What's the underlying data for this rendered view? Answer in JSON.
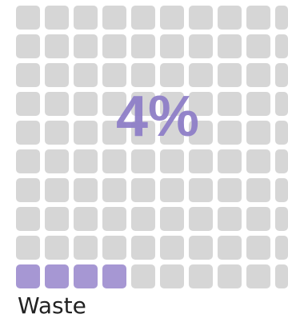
{
  "chart_data": {
    "type": "waffle",
    "percent": 4,
    "label": "Waste",
    "display_value": "4%",
    "filled_cells": 4,
    "rows": 10,
    "filled_color": "#a697d3",
    "empty_color": "#d6d6d6"
  }
}
